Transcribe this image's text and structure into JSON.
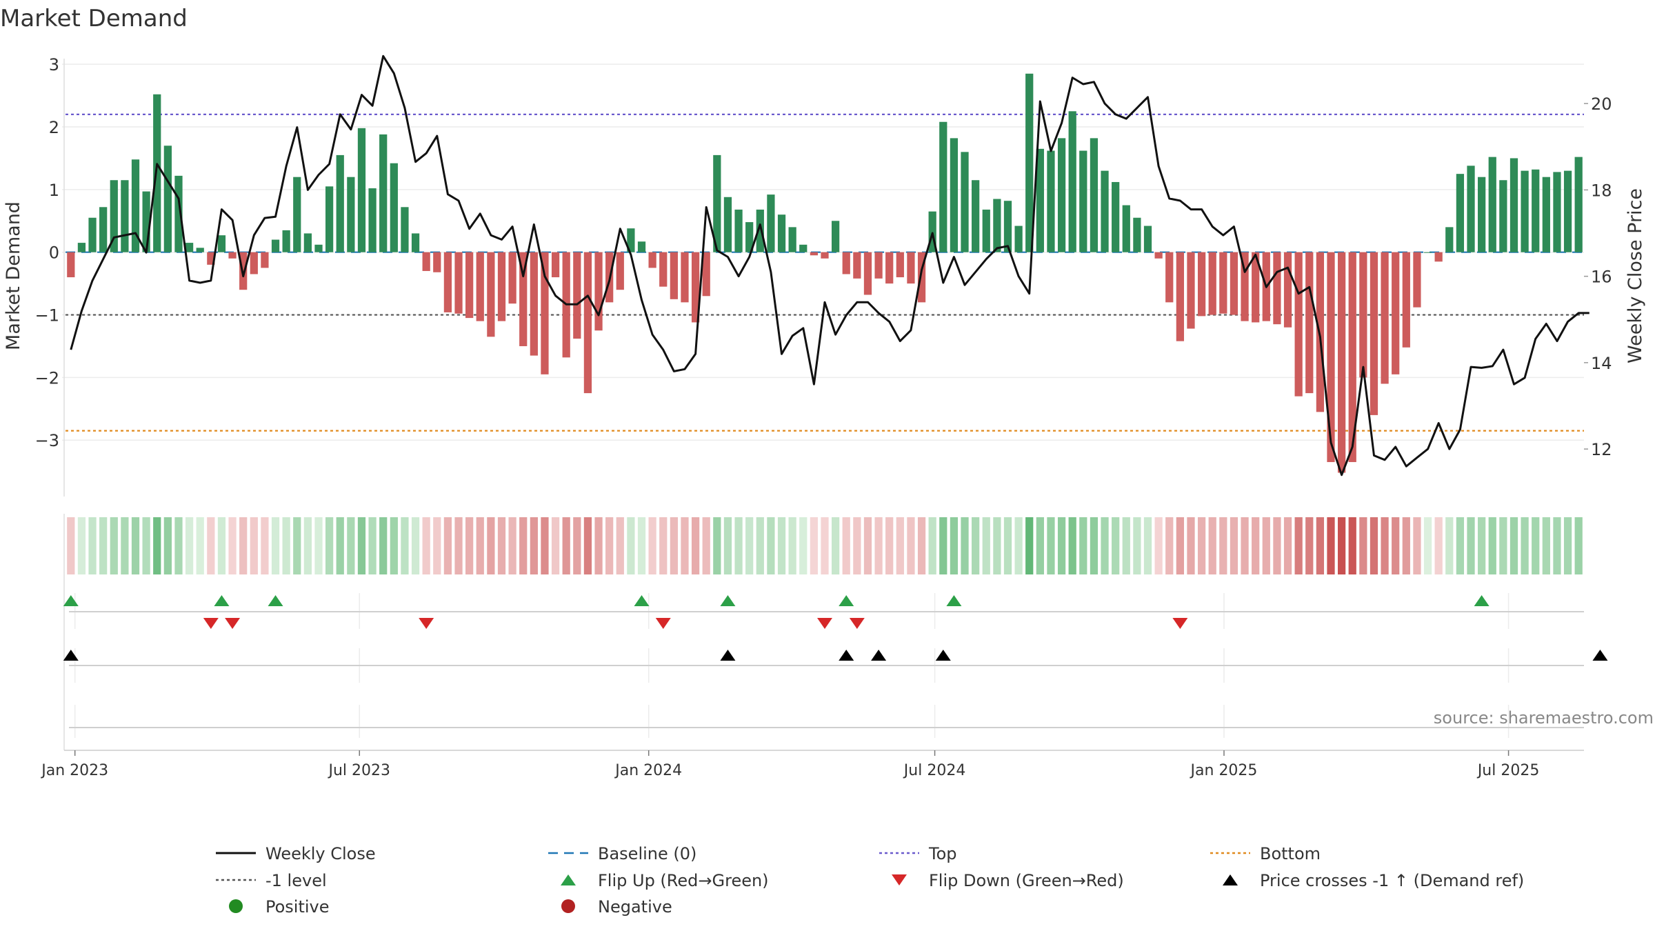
{
  "chart_data": {
    "type": "bar",
    "title": "Market Demand",
    "source": "source: sharemaestro.com",
    "ylabel_left": "Market Demand",
    "ylabel_right": "Weekly Close Price",
    "ylim_left": [
      -3.9,
      3.2
    ],
    "ylim_right": [
      10.9,
      21.2
    ],
    "yticks_left": [
      -3,
      -2,
      -1,
      0,
      1,
      2,
      3
    ],
    "yticks_left_labels": [
      "−3",
      "−2",
      "−1",
      "0",
      "1",
      "2",
      "3"
    ],
    "yticks_right": [
      12,
      14,
      16,
      18,
      20
    ],
    "yticks_right_labels": [
      "12",
      "14",
      "16",
      "18",
      "20"
    ],
    "x_start": "2022-12-26",
    "x_end": "2025-08-18",
    "x_ticks": [
      {
        "date": "2023-01-01",
        "label": "Jan 2023"
      },
      {
        "date": "2023-07-01",
        "label": "Jul 2023"
      },
      {
        "date": "2024-01-01",
        "label": "Jan 2024"
      },
      {
        "date": "2024-07-01",
        "label": "Jul 2024"
      },
      {
        "date": "2025-01-01",
        "label": "Jan 2025"
      },
      {
        "date": "2025-07-01",
        "label": "Jul 2025"
      }
    ],
    "reference_lines": {
      "top": 2.2,
      "minus_one": -1.0,
      "bottom": -2.85,
      "baseline": 0
    },
    "demand": [
      -0.4,
      0.15,
      0.55,
      0.72,
      1.15,
      1.15,
      1.48,
      0.97,
      2.52,
      1.7,
      1.22,
      0.15,
      0.07,
      -0.2,
      0.27,
      -0.1,
      -0.6,
      -0.35,
      -0.25,
      0.2,
      0.35,
      1.2,
      0.3,
      0.12,
      1.05,
      1.55,
      1.2,
      1.98,
      1.02,
      1.88,
      1.42,
      0.72,
      0.3,
      -0.3,
      -0.32,
      -0.96,
      -0.98,
      -1.05,
      -1.1,
      -1.35,
      -1.1,
      -0.82,
      -1.5,
      -1.65,
      -1.95,
      -0.4,
      -1.68,
      -1.38,
      -2.25,
      -1.25,
      -0.8,
      -0.6,
      0.38,
      0.17,
      -0.25,
      -0.55,
      -0.75,
      -0.8,
      -1.12,
      -0.7,
      1.55,
      0.88,
      0.68,
      0.48,
      0.68,
      0.92,
      0.6,
      0.4,
      0.12,
      -0.05,
      -0.1,
      0.5,
      -0.35,
      -0.42,
      -0.68,
      -0.42,
      -0.5,
      -0.4,
      -0.5,
      -0.8,
      0.65,
      2.08,
      1.82,
      1.6,
      1.15,
      0.68,
      0.85,
      0.82,
      0.42,
      2.85,
      1.65,
      1.62,
      1.82,
      2.25,
      1.62,
      1.82,
      1.3,
      1.12,
      0.75,
      0.55,
      0.42,
      -0.1,
      -0.8,
      -1.42,
      -1.22,
      -1.02,
      -1.0,
      -0.98,
      -1.0,
      -1.1,
      -1.12,
      -1.1,
      -1.15,
      -1.2,
      -2.3,
      -2.25,
      -2.55,
      -3.35,
      -3.52,
      -3.35,
      -2.0,
      -2.6,
      -2.1,
      -1.95,
      -1.52,
      -0.88,
      0.0,
      -0.15,
      0.4,
      1.25,
      1.38,
      1.2,
      1.52,
      1.15,
      1.5,
      1.3,
      1.32,
      1.2,
      1.28,
      1.3,
      1.52
    ],
    "close": [
      14.3,
      15.2,
      15.9,
      16.4,
      16.9,
      16.95,
      17.0,
      16.55,
      18.6,
      18.2,
      17.8,
      15.9,
      15.85,
      15.9,
      17.55,
      17.3,
      16.0,
      16.95,
      17.35,
      17.38,
      18.55,
      19.45,
      18.0,
      18.35,
      18.6,
      19.75,
      19.4,
      20.2,
      19.95,
      21.1,
      20.7,
      19.9,
      18.65,
      18.85,
      19.25,
      17.9,
      17.75,
      17.1,
      17.45,
      16.95,
      16.85,
      17.15,
      16.0,
      17.2,
      16.0,
      15.55,
      15.35,
      15.35,
      15.55,
      15.1,
      15.9,
      17.1,
      16.5,
      15.45,
      14.65,
      14.3,
      13.8,
      13.85,
      14.2,
      17.6,
      16.6,
      16.45,
      16.0,
      16.45,
      17.2,
      16.1,
      14.2,
      14.62,
      14.8,
      13.5,
      15.4,
      14.65,
      15.1,
      15.4,
      15.4,
      15.15,
      14.95,
      14.5,
      14.75,
      16.15,
      17.0,
      15.85,
      16.45,
      15.8,
      16.1,
      16.4,
      16.65,
      16.7,
      16.0,
      15.6,
      20.05,
      18.9,
      19.55,
      20.6,
      20.45,
      20.5,
      20.0,
      19.75,
      19.65,
      19.9,
      20.15,
      18.55,
      17.8,
      17.75,
      17.55,
      17.55,
      17.15,
      16.95,
      17.15,
      16.1,
      16.5,
      15.75,
      16.1,
      16.2,
      15.6,
      15.75,
      14.6,
      12.15,
      11.4,
      12.05,
      13.9,
      11.85,
      11.75,
      12.05,
      11.6,
      11.8,
      12.0,
      12.6,
      12.0,
      12.45,
      13.9,
      13.88,
      13.92,
      14.3,
      13.5,
      13.65,
      14.55,
      14.9,
      14.5,
      14.95,
      15.15,
      15.15
    ],
    "flip_up_indices": [
      0,
      14,
      19,
      53,
      61,
      72,
      82,
      131
    ],
    "flip_down_indices": [
      13,
      15,
      33,
      55,
      70,
      73,
      103
    ],
    "cross_indices": [
      0,
      61,
      72,
      75,
      81,
      142
    ],
    "legend": [
      {
        "label": "Weekly Close",
        "symbol": "line",
        "color": "#111111"
      },
      {
        "label": "Baseline (0)",
        "symbol": "dash",
        "color": "#1f77b4"
      },
      {
        "label": "Top",
        "symbol": "dots",
        "color": "#6a5acd"
      },
      {
        "label": "Bottom",
        "symbol": "dots",
        "color": "#e08a1e"
      },
      {
        "label": "-1 level",
        "symbol": "dots",
        "color": "#555555"
      },
      {
        "label": "Flip Up (Red→Green)",
        "symbol": "tri-up",
        "color": "#2ca048"
      },
      {
        "label": "Flip Down (Green→Red)",
        "symbol": "tri-down",
        "color": "#d62728"
      },
      {
        "label": "Price crosses -1 ↑ (Demand ref)",
        "symbol": "tri-up",
        "color": "#000000"
      },
      {
        "label": "Positive",
        "symbol": "dot",
        "color": "#228b22"
      },
      {
        "label": "Negative",
        "symbol": "dot",
        "color": "#b22222"
      }
    ],
    "colors": {
      "positive_bar": "#2e8b57",
      "negative_bar": "#cd5c5c",
      "close_line": "#111111",
      "flip_up": "#2ca048",
      "flip_down": "#d62728",
      "cross": "#000000"
    }
  }
}
